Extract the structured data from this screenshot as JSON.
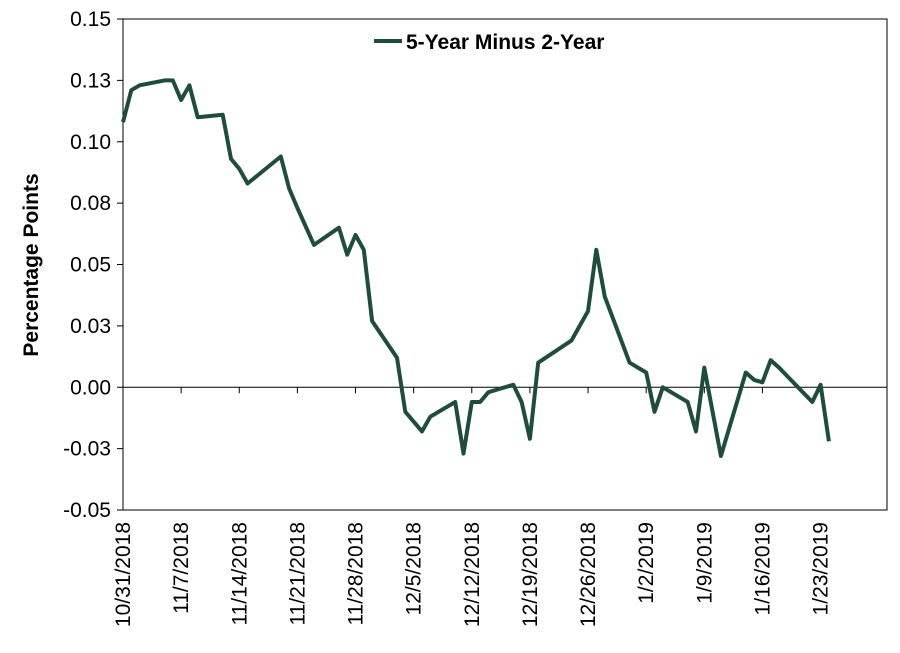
{
  "chart_data": {
    "type": "line",
    "title": "",
    "xlabel": "",
    "ylabel": "Percentage Points",
    "ylim": [
      -0.05,
      0.15
    ],
    "y_ticks": [
      {
        "value": 0.15,
        "label": "0.15"
      },
      {
        "value": 0.125,
        "label": "0.13"
      },
      {
        "value": 0.1,
        "label": "0.10"
      },
      {
        "value": 0.075,
        "label": "0.08"
      },
      {
        "value": 0.05,
        "label": "0.05"
      },
      {
        "value": 0.025,
        "label": "0.03"
      },
      {
        "value": 0.0,
        "label": "0.00"
      },
      {
        "value": -0.025,
        "label": "-0.03"
      },
      {
        "value": -0.05,
        "label": "-0.05"
      }
    ],
    "x_ticks": [
      {
        "date": "2018-10-31",
        "label": "10/31/2018"
      },
      {
        "date": "2018-11-07",
        "label": "11/7/2018"
      },
      {
        "date": "2018-11-14",
        "label": "11/14/2018"
      },
      {
        "date": "2018-11-21",
        "label": "11/21/2018"
      },
      {
        "date": "2018-11-28",
        "label": "11/28/2018"
      },
      {
        "date": "2018-12-05",
        "label": "12/5/2018"
      },
      {
        "date": "2018-12-12",
        "label": "12/12/2018"
      },
      {
        "date": "2018-12-19",
        "label": "12/19/2018"
      },
      {
        "date": "2018-12-26",
        "label": "12/26/2018"
      },
      {
        "date": "2019-01-02",
        "label": "1/2/2019"
      },
      {
        "date": "2019-01-09",
        "label": "1/9/2019"
      },
      {
        "date": "2019-01-16",
        "label": "1/16/2019"
      },
      {
        "date": "2019-01-23",
        "label": "1/23/2019"
      }
    ],
    "xlim": [
      "2018-10-31",
      "2019-01-31"
    ],
    "legend_position": "top-center",
    "grid": false,
    "series": [
      {
        "name": "5-Year Minus 2-Year",
        "color": "#1e4d3c",
        "points": [
          [
            "2018-10-31",
            0.108
          ],
          [
            "2018-11-01",
            0.121
          ],
          [
            "2018-11-02",
            0.123
          ],
          [
            "2018-11-05",
            0.125
          ],
          [
            "2018-11-06",
            0.125
          ],
          [
            "2018-11-07",
            0.117
          ],
          [
            "2018-11-08",
            0.123
          ],
          [
            "2018-11-09",
            0.11
          ],
          [
            "2018-11-12",
            0.111
          ],
          [
            "2018-11-13",
            0.093
          ],
          [
            "2018-11-14",
            0.089
          ],
          [
            "2018-11-15",
            0.083
          ],
          [
            "2018-11-19",
            0.094
          ],
          [
            "2018-11-20",
            0.081
          ],
          [
            "2018-11-21",
            0.073
          ],
          [
            "2018-11-23",
            0.058
          ],
          [
            "2018-11-26",
            0.065
          ],
          [
            "2018-11-27",
            0.054
          ],
          [
            "2018-11-28",
            0.062
          ],
          [
            "2018-11-29",
            0.056
          ],
          [
            "2018-11-30",
            0.027
          ],
          [
            "2018-12-03",
            0.012
          ],
          [
            "2018-12-04",
            -0.01
          ],
          [
            "2018-12-06",
            -0.018
          ],
          [
            "2018-12-07",
            -0.012
          ],
          [
            "2018-12-10",
            -0.006
          ],
          [
            "2018-12-11",
            -0.027
          ],
          [
            "2018-12-12",
            -0.006
          ],
          [
            "2018-12-13",
            -0.006
          ],
          [
            "2018-12-14",
            -0.002
          ],
          [
            "2018-12-17",
            0.001
          ],
          [
            "2018-12-18",
            -0.006
          ],
          [
            "2018-12-19",
            -0.021
          ],
          [
            "2018-12-20",
            0.01
          ],
          [
            "2018-12-24",
            0.019
          ],
          [
            "2018-12-26",
            0.031
          ],
          [
            "2018-12-27",
            0.056
          ],
          [
            "2018-12-28",
            0.037
          ],
          [
            "2018-12-31",
            0.01
          ],
          [
            "2019-01-02",
            0.006
          ],
          [
            "2019-01-03",
            -0.01
          ],
          [
            "2019-01-04",
            0.0
          ],
          [
            "2019-01-07",
            -0.006
          ],
          [
            "2019-01-08",
            -0.018
          ],
          [
            "2019-01-09",
            0.008
          ],
          [
            "2019-01-11",
            -0.028
          ],
          [
            "2019-01-14",
            0.006
          ],
          [
            "2019-01-15",
            0.003
          ],
          [
            "2019-01-16",
            0.002
          ],
          [
            "2019-01-17",
            0.011
          ],
          [
            "2019-01-18",
            0.008
          ],
          [
            "2019-01-22",
            -0.006
          ],
          [
            "2019-01-23",
            0.001
          ],
          [
            "2019-01-24",
            -0.022
          ]
        ]
      }
    ]
  }
}
